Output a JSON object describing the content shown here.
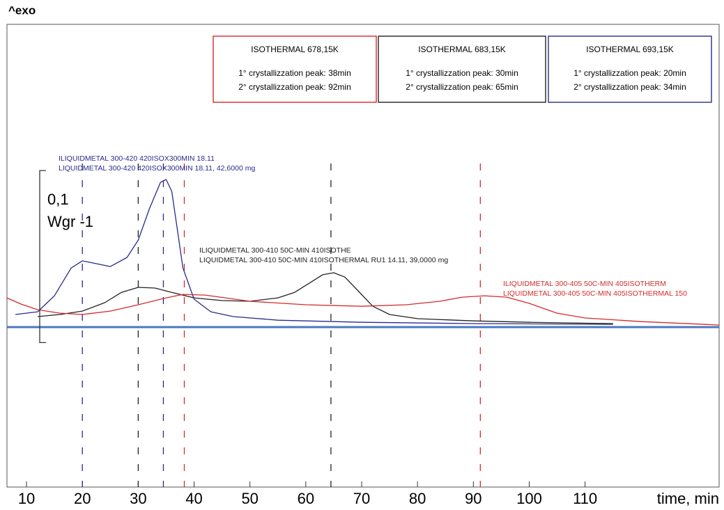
{
  "chart_data": {
    "type": "line",
    "y_label": "^exo",
    "x_label": "time, min",
    "xlim": [
      6.5,
      134
    ],
    "ylim": [
      -0.093,
      0.176
    ],
    "xticks": [
      10,
      20,
      30,
      40,
      50,
      60,
      70,
      80,
      90,
      100,
      110
    ],
    "baseline": 0,
    "baseline_color": "#4a78c0",
    "scale_bar": {
      "label_lines": [
        "0,1",
        "Wgr -1"
      ],
      "from": -0.009,
      "to": 0.091
    },
    "series": [
      {
        "name": "ISOTHERMAL 693,15K",
        "color": "#2a2a8c",
        "label_lines": [
          "ILIQUIDMETAL 300-420 420ISOX300MIN 18.11",
          "LIQUIDMETAL 300-420 420ISOX300MIN 18.11, 42,6000 mg"
        ],
        "x": [
          8,
          12,
          15,
          18,
          20,
          22,
          25,
          28,
          30,
          32,
          34,
          35,
          36,
          37,
          38,
          40,
          43,
          47,
          55,
          70,
          90,
          115
        ],
        "values": [
          0.0073,
          0.0089,
          0.0182,
          0.0344,
          0.0385,
          0.0372,
          0.0352,
          0.0405,
          0.0506,
          0.0688,
          0.0842,
          0.0858,
          0.0789,
          0.0567,
          0.0344,
          0.0162,
          0.0089,
          0.0061,
          0.004,
          0.0028,
          0.002,
          0.0016
        ],
        "peak_lines": [
          20,
          34.5
        ],
        "box_lines": [
          "1° crystallizzation peak: 20min",
          "2° crystallizzation peak: 34min"
        ]
      },
      {
        "name": "ISOTHERMAL 683,15K",
        "color": "#222222",
        "label_lines": [
          "ILIQUIDMETAL 300-410 50C-MIN 410ISOTHE",
          "LIQUIDMETAL 300-410 50C-MIN 410ISOTHERMAL RU1 14.11, 39,0000 mg"
        ],
        "x": [
          12,
          16,
          20,
          24,
          27,
          30,
          33,
          36,
          40,
          45,
          50,
          55,
          58,
          61,
          63,
          65,
          67,
          69,
          72,
          75,
          80,
          90,
          100,
          115
        ],
        "values": [
          0.0061,
          0.0073,
          0.0093,
          0.0142,
          0.0202,
          0.0231,
          0.0227,
          0.0202,
          0.017,
          0.0154,
          0.015,
          0.017,
          0.0202,
          0.0263,
          0.0304,
          0.0316,
          0.0291,
          0.0223,
          0.0121,
          0.0073,
          0.0049,
          0.0036,
          0.0028,
          0.002
        ],
        "peak_lines": [
          30,
          64.5
        ],
        "box_lines": [
          "1° crystallizzation peak: 30min",
          "2° crystallizzation peak: 65min"
        ]
      },
      {
        "name": "ISOTHERMAL 678,15K",
        "color": "#d42a2a",
        "label_lines": [
          "ILIQUIDMETAL 300-405 50C-MIN 405ISOTHERM",
          "LIQUIDMETAL 300-405 50C-MIN 405ISOTHERMAL 150"
        ],
        "x": [
          6.5,
          9,
          12,
          16,
          20,
          25,
          30,
          35,
          38,
          42,
          50,
          60,
          70,
          78,
          84,
          88,
          92,
          96,
          100,
          105,
          110,
          120,
          134
        ],
        "values": [
          0.017,
          0.0134,
          0.0101,
          0.0081,
          0.0073,
          0.0093,
          0.013,
          0.017,
          0.019,
          0.0186,
          0.015,
          0.013,
          0.0121,
          0.013,
          0.015,
          0.0174,
          0.0182,
          0.0174,
          0.0138,
          0.0081,
          0.0053,
          0.0032,
          0.0012
        ],
        "peak_lines": [
          38.25,
          91.25
        ],
        "box_lines": [
          "1° crystallizzation peak: 38min",
          "2° crystallizzation peak: 92min"
        ]
      }
    ]
  }
}
